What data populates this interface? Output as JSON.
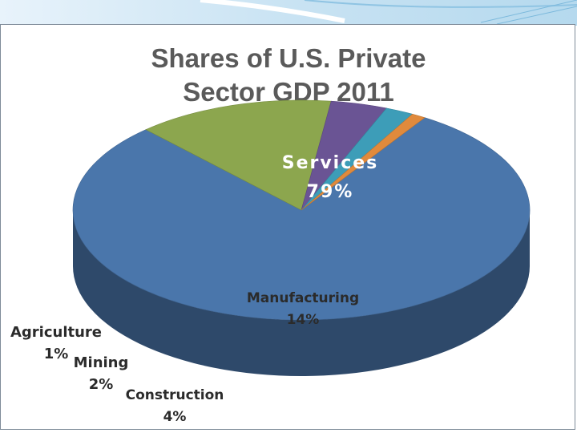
{
  "chart_data": {
    "type": "pie",
    "title": "Shares of U.S. Private Sector GDP 2011",
    "title_lines": [
      "Shares of U.S. Private",
      "Sector GDP 2011"
    ],
    "slices": [
      {
        "label": "Services",
        "value": 79,
        "display": "79%",
        "color": "#4a76ab"
      },
      {
        "label": "Manufacturing",
        "value": 14,
        "display": "14%",
        "color": "#8ca64e"
      },
      {
        "label": "Construction",
        "value": 4,
        "display": "4%",
        "color": "#6a5494"
      },
      {
        "label": "Mining",
        "value": 2,
        "display": "2%",
        "color": "#3d9db8"
      },
      {
        "label": "Agriculture",
        "value": 1,
        "display": "1%",
        "color": "#e08a3c"
      }
    ],
    "style": "3d-pie",
    "legend": "none"
  }
}
